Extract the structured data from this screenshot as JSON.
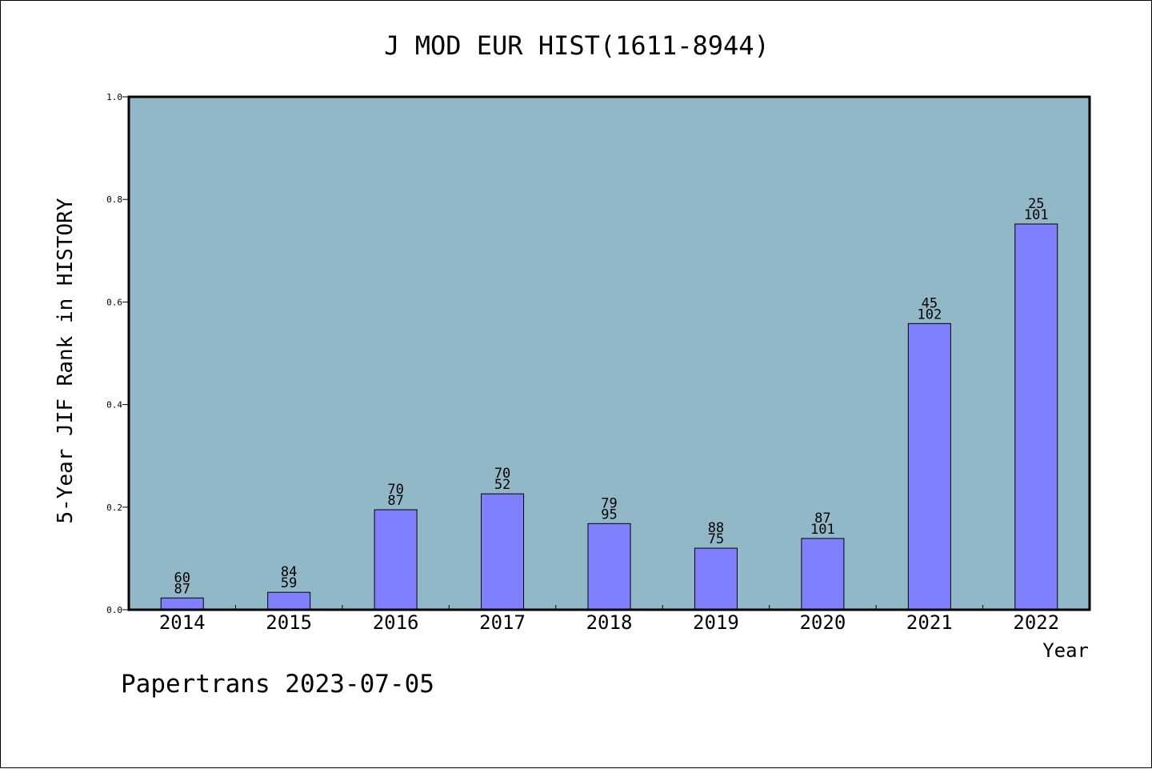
{
  "chart_data": {
    "type": "bar",
    "title": "J MOD EUR HIST(1611-8944)",
    "xlabel": "Year",
    "ylabel": "5-Year JIF Rank in HISTORY",
    "ylim": [
      0,
      1.0
    ],
    "yticks": [
      "0.0",
      "0.2",
      "0.4",
      "0.6",
      "0.8",
      "1.0"
    ],
    "categories": [
      "2014",
      "2015",
      "2016",
      "2017",
      "2018",
      "2019",
      "2020",
      "2021",
      "2022"
    ],
    "values": [
      0.023,
      0.034,
      0.195,
      0.226,
      0.168,
      0.12,
      0.139,
      0.558,
      0.752
    ],
    "bar_labels": [
      {
        "top": "60",
        "bottom": "87"
      },
      {
        "top": "84",
        "bottom": "59"
      },
      {
        "top": "70",
        "bottom": "87"
      },
      {
        "top": "70",
        "bottom": "52"
      },
      {
        "top": "79",
        "bottom": "95"
      },
      {
        "top": "88",
        "bottom": "75"
      },
      {
        "top": "87",
        "bottom": "101"
      },
      {
        "top": "45",
        "bottom": "102"
      },
      {
        "top": "25",
        "bottom": "101"
      }
    ],
    "colors": {
      "plot_background": "#90B8C6",
      "bar_fill": "#8080FF",
      "bar_stroke": "#000000"
    },
    "grid": false,
    "legend": "none"
  },
  "footer": "Papertrans 2023-07-05"
}
